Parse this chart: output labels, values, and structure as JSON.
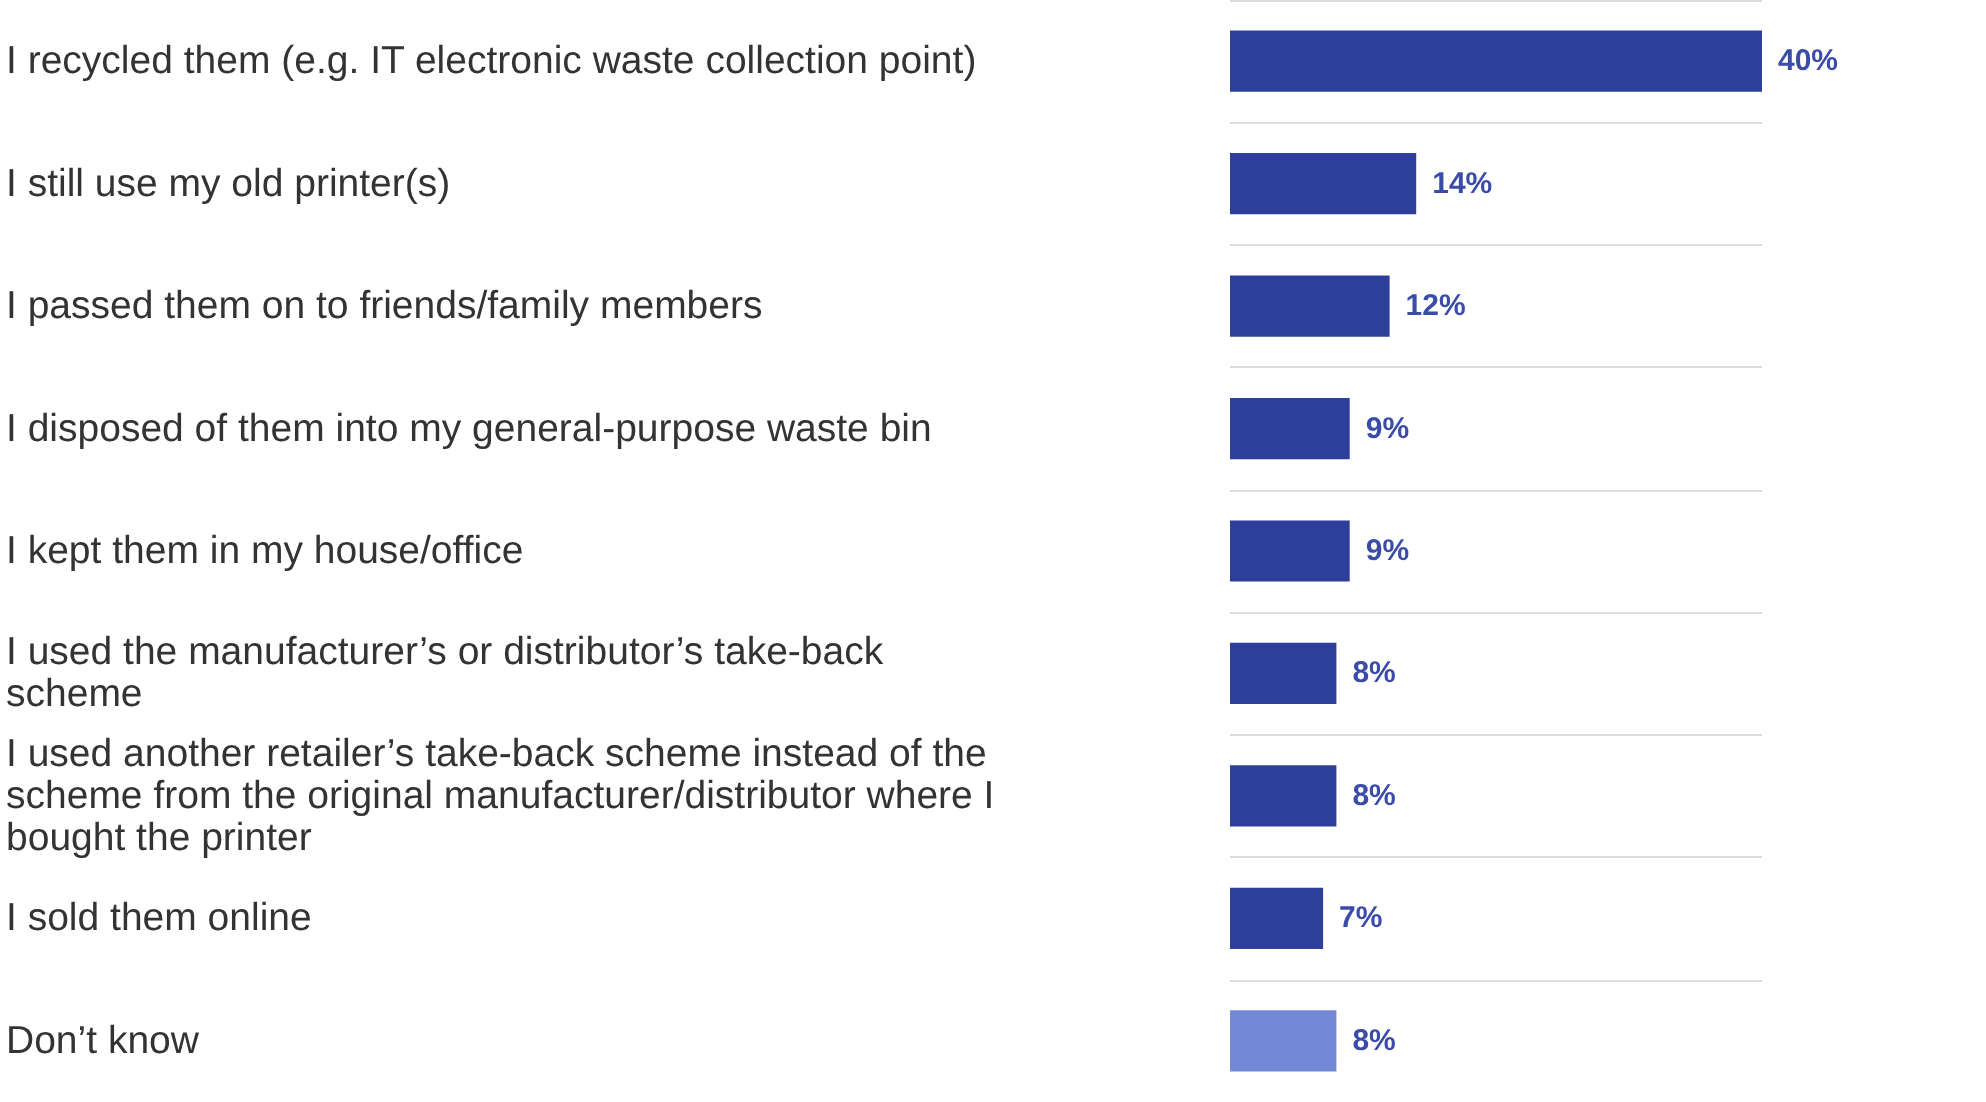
{
  "chart_data": {
    "type": "bar",
    "orientation": "horizontal",
    "categories": [
      "I recycled them (e.g. IT electronic waste collection point)",
      "I still use my old printer(s)",
      "I passed them on to friends/family members",
      "I disposed of them into my general-purpose waste bin",
      "I kept them in my house/office",
      "I used the manufacturer’s or distributor’s take-back scheme",
      "I used another retailer’s take-back scheme instead of the scheme from the original manufacturer/distributor where I bought the printer",
      "I sold them online",
      "Don’t know"
    ],
    "values": [
      40,
      14,
      12,
      9,
      9,
      8,
      8,
      7,
      8
    ],
    "value_labels": [
      "40%",
      "14%",
      "12%",
      "9%",
      "9%",
      "8%",
      "8%",
      "7%",
      "8%"
    ],
    "colors": [
      "#2e3f9b",
      "#2e3f9b",
      "#2e3f9b",
      "#2e3f9b",
      "#2e3f9b",
      "#2e3f9b",
      "#2e3f9b",
      "#2e3f9b",
      "#7388d6"
    ],
    "grid": "y"
  }
}
